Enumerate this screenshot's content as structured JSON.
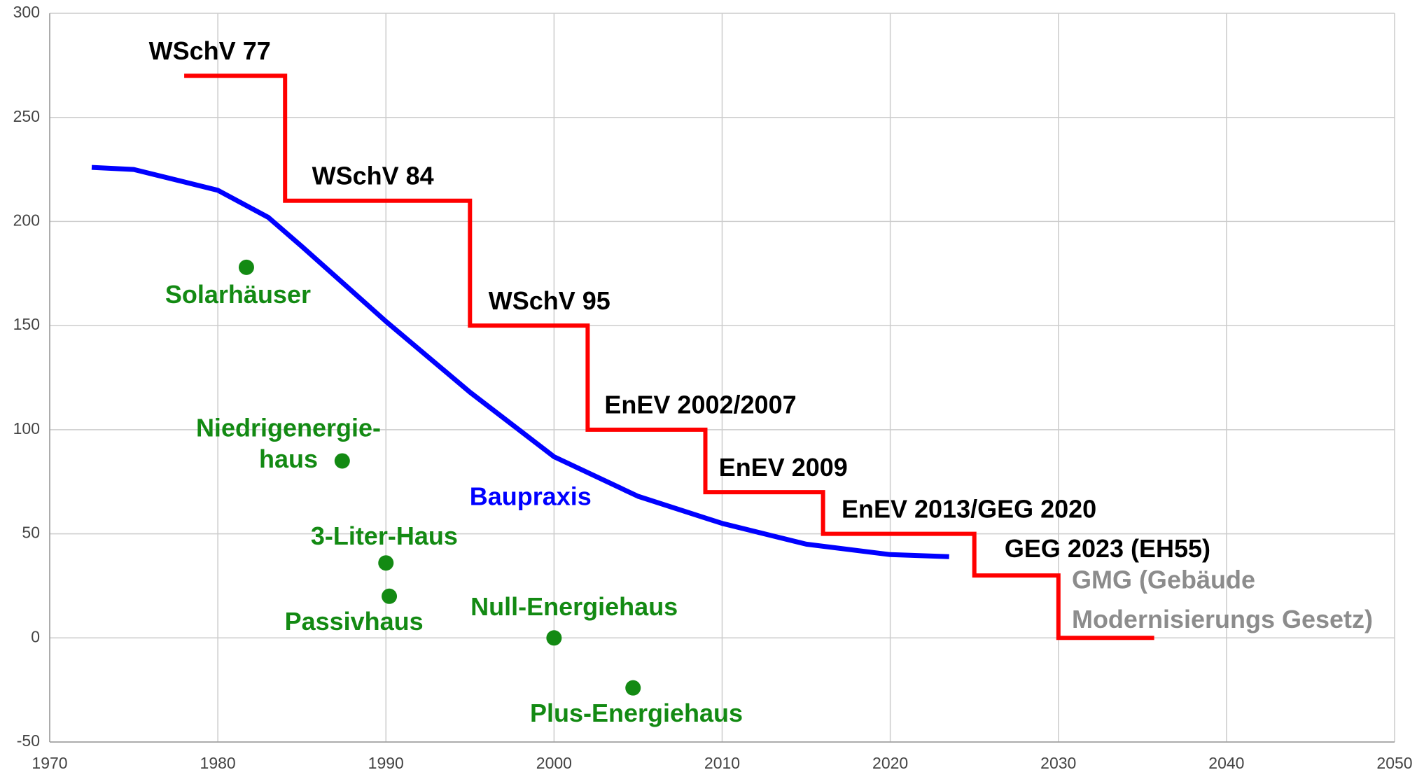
{
  "chart_data": {
    "type": "line",
    "xlim": [
      1970,
      2050
    ],
    "xticks": [
      1970,
      1980,
      1990,
      2000,
      2010,
      2020,
      2030,
      2040,
      2050
    ],
    "ylim": [
      -50,
      300
    ],
    "yticks": [
      -50,
      0,
      50,
      100,
      150,
      200,
      250,
      300
    ],
    "grid": true,
    "series": [
      {
        "color": "#ff0000",
        "step": "post",
        "x": [
          1978,
          1984,
          1995,
          2002,
          2009,
          2016,
          2025,
          2030,
          2035.7
        ],
        "values": [
          270,
          210,
          150,
          100,
          70,
          50,
          30,
          0,
          0
        ]
      },
      {
        "name": "Baupraxis",
        "color": "#0000ff",
        "x": [
          1972.5,
          1975,
          1980,
          1983,
          1985,
          1990,
          1995,
          2000,
          2005,
          2010,
          2015,
          2020,
          2023.5
        ],
        "values": [
          226,
          225,
          215,
          202,
          188,
          152,
          118,
          87,
          68,
          55,
          45,
          40,
          39
        ],
        "label_x": 1998.6,
        "label_y": 67
      }
    ],
    "points": {
      "color": "#138a13",
      "x": [
        1981.7,
        1987.4,
        1990,
        1990.2,
        2000,
        2004.7
      ],
      "values": [
        178,
        85,
        36,
        20,
        0,
        -24
      ]
    },
    "annotations": [
      {
        "text": "WSchV 77",
        "x": 1975.9,
        "y": 281,
        "color": "#000000",
        "anchor": "start"
      },
      {
        "text": "WSchV 84",
        "x": 1985.6,
        "y": 221,
        "color": "#000000",
        "anchor": "start"
      },
      {
        "text": "WSchV 95",
        "x": 1996.1,
        "y": 161,
        "color": "#000000",
        "anchor": "start"
      },
      {
        "text": "EnEV 2002/2007",
        "x": 2003,
        "y": 111,
        "color": "#000000",
        "anchor": "start"
      },
      {
        "text": "EnEV 2009",
        "x": 2009.8,
        "y": 81,
        "color": "#000000",
        "anchor": "start"
      },
      {
        "text": "EnEV 2013/GEG 2020",
        "x": 2017.1,
        "y": 61,
        "color": "#000000",
        "anchor": "start"
      },
      {
        "text": "GEG 2023 (EH55)",
        "x": 2026.8,
        "y": 42,
        "color": "#000000",
        "anchor": "start"
      },
      {
        "text": "GMG (Gebäude",
        "x": 2030.8,
        "y": 27,
        "color": "#8c8c8c",
        "anchor": "start"
      },
      {
        "text": "Modernisierungs Gesetz)",
        "x": 2030.8,
        "y": 8,
        "color": "#8c8c8c",
        "anchor": "start"
      },
      {
        "text": "Solarhäuser",
        "x": 1981.2,
        "y": 164,
        "color": "#138a13",
        "anchor": "middle"
      },
      {
        "text": "Niedrigenergie-",
        "x": 1984.2,
        "y": 100,
        "color": "#138a13",
        "anchor": "middle"
      },
      {
        "text": "haus",
        "x": 1984.2,
        "y": 85,
        "color": "#138a13",
        "anchor": "middle"
      },
      {
        "text": "3-Liter-Haus",
        "x": 1989.9,
        "y": 48,
        "color": "#138a13",
        "anchor": "middle"
      },
      {
        "text": "Passivhaus",
        "x": 1988.1,
        "y": 7,
        "color": "#138a13",
        "anchor": "middle"
      },
      {
        "text": "Null-Energiehaus",
        "x": 2001.2,
        "y": 14,
        "color": "#138a13",
        "anchor": "middle"
      },
      {
        "text": "Plus-Energiehaus",
        "x": 2004.9,
        "y": -37,
        "color": "#138a13",
        "anchor": "middle"
      }
    ]
  }
}
